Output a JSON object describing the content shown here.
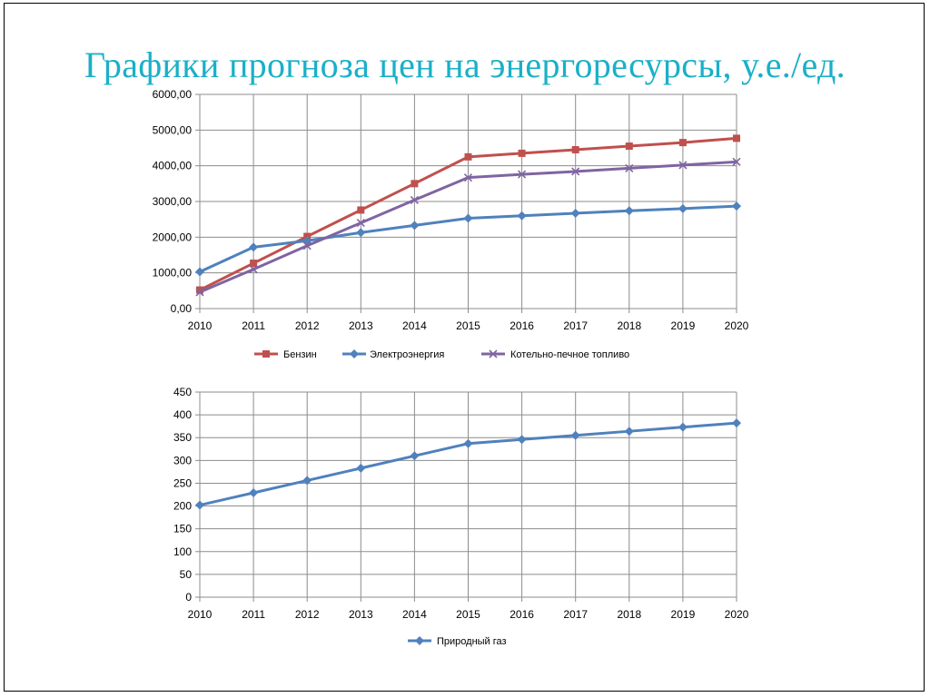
{
  "slide": {
    "title": "Графики прогноза цен на энергоресурсы, у.е./ед."
  },
  "chart_data": [
    {
      "type": "line",
      "title": "",
      "xlabel": "",
      "ylabel": "",
      "categories": [
        "2010",
        "2011",
        "2012",
        "2013",
        "2014",
        "2015",
        "2016",
        "2017",
        "2018",
        "2019",
        "2020"
      ],
      "ylim": [
        0,
        6000
      ],
      "yticks": [
        "0,00",
        "1000,00",
        "2000,00",
        "3000,00",
        "4000,00",
        "5000,00",
        "6000,00"
      ],
      "grid": true,
      "legend_position": "bottom",
      "series": [
        {
          "name": "Бензин",
          "color": "#c0504d",
          "marker": "square",
          "values": [
            520,
            1270,
            2020,
            2760,
            3500,
            4250,
            4350,
            4450,
            4550,
            4650,
            4770
          ]
        },
        {
          "name": "Электроэнергия",
          "color": "#4f81bd",
          "marker": "diamond",
          "values": [
            1030,
            1720,
            1900,
            2130,
            2330,
            2530,
            2600,
            2670,
            2740,
            2800,
            2870
          ]
        },
        {
          "name": "Котельно-печное топливо",
          "color": "#8064a2",
          "marker": "x",
          "values": [
            460,
            1100,
            1760,
            2400,
            3040,
            3670,
            3760,
            3840,
            3930,
            4020,
            4110
          ]
        }
      ]
    },
    {
      "type": "line",
      "title": "",
      "xlabel": "",
      "ylabel": "",
      "categories": [
        "2010",
        "2011",
        "2012",
        "2013",
        "2014",
        "2015",
        "2016",
        "2017",
        "2018",
        "2019",
        "2020"
      ],
      "ylim": [
        0,
        450
      ],
      "yticks": [
        "0",
        "50",
        "100",
        "150",
        "200",
        "250",
        "300",
        "350",
        "400",
        "450"
      ],
      "grid": true,
      "legend_position": "bottom",
      "series": [
        {
          "name": "Природный газ",
          "color": "#4f81bd",
          "marker": "diamond",
          "values": [
            202,
            229,
            256,
            283,
            310,
            337,
            346,
            355,
            364,
            373,
            382
          ]
        }
      ]
    }
  ]
}
